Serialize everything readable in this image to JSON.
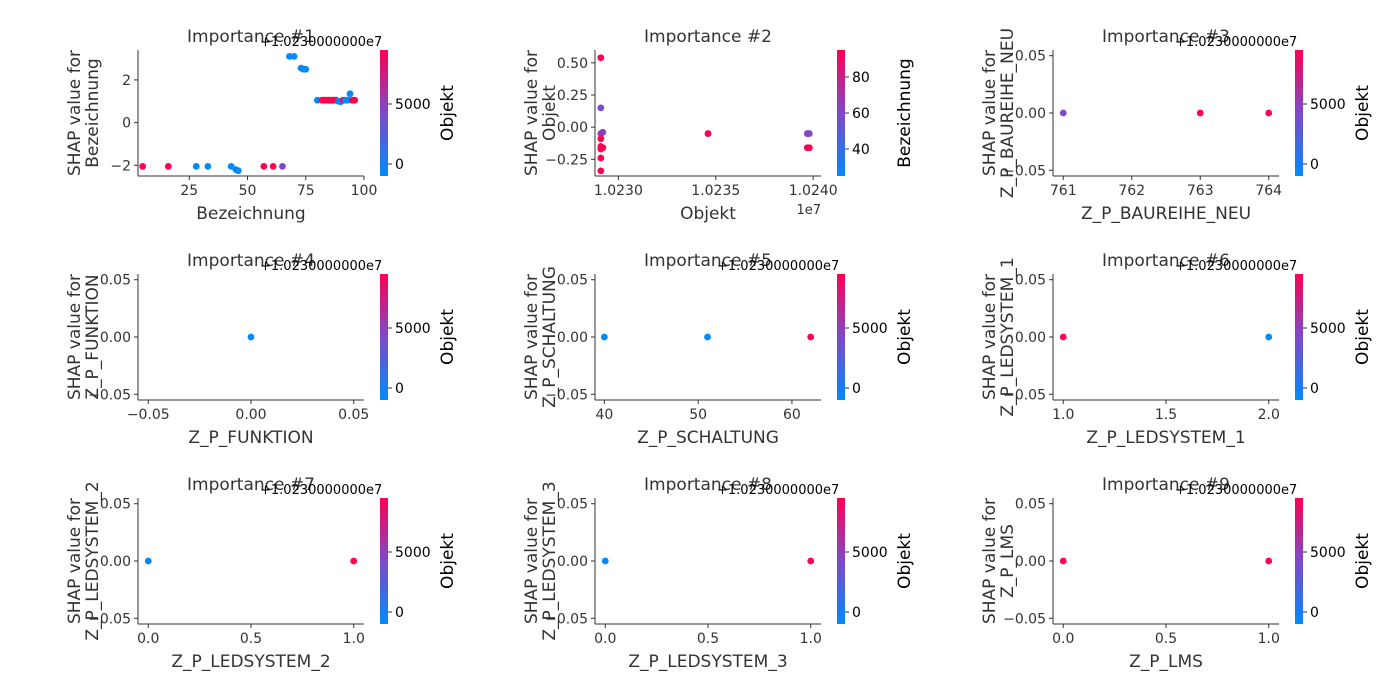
{
  "figure": {
    "colormap": [
      "#008afb",
      "#7e49c8",
      "#ff0052"
    ]
  },
  "chart_data": [
    {
      "type": "scatter",
      "title": "Importance #1",
      "xlabel": "Bezeichnung",
      "ylabel": [
        "SHAP value for",
        "Bezeichnung"
      ],
      "xlim": [
        3,
        100
      ],
      "ylim": [
        -2.5,
        3.4
      ],
      "xticks": [
        25,
        50,
        75,
        100
      ],
      "xtick_labels": [
        "25",
        "50",
        "75",
        "100"
      ],
      "yticks": [
        -2,
        0,
        2
      ],
      "ytick_labels": [
        "−2",
        "0",
        "2"
      ],
      "x_offset": "",
      "y_offset": "+1.0230000000e7",
      "colorbar": {
        "label": "Objekt",
        "min": -1000,
        "max": 9500,
        "ticks": [
          0,
          5000
        ],
        "tick_labels": [
          "0",
          "5000"
        ]
      },
      "points": [
        {
          "x": 5,
          "y": -2.05,
          "c": 1
        },
        {
          "x": 16,
          "y": -2.05,
          "c": 1
        },
        {
          "x": 28,
          "y": -2.05,
          "c": 0
        },
        {
          "x": 33,
          "y": -2.05,
          "c": 0
        },
        {
          "x": 43,
          "y": -2.05,
          "c": 0
        },
        {
          "x": 45,
          "y": -2.2,
          "c": 0
        },
        {
          "x": 46,
          "y": -2.25,
          "c": 0
        },
        {
          "x": 57,
          "y": -2.05,
          "c": 1
        },
        {
          "x": 61,
          "y": -2.05,
          "c": 1
        },
        {
          "x": 65,
          "y": -2.05,
          "c": 0.5
        },
        {
          "x": 68,
          "y": 3.1,
          "c": 0
        },
        {
          "x": 70,
          "y": 3.1,
          "c": 0
        },
        {
          "x": 73,
          "y": 2.55,
          "c": 0
        },
        {
          "x": 74,
          "y": 2.5,
          "c": 0
        },
        {
          "x": 75,
          "y": 2.5,
          "c": 0
        },
        {
          "x": 80,
          "y": 1.05,
          "c": 0
        },
        {
          "x": 82,
          "y": 1.05,
          "c": 1
        },
        {
          "x": 83,
          "y": 1.05,
          "c": 1
        },
        {
          "x": 84,
          "y": 1.05,
          "c": 1
        },
        {
          "x": 85,
          "y": 1.05,
          "c": 1
        },
        {
          "x": 86,
          "y": 1.05,
          "c": 1
        },
        {
          "x": 87,
          "y": 1.05,
          "c": 1
        },
        {
          "x": 88,
          "y": 1.05,
          "c": 1
        },
        {
          "x": 89,
          "y": 1.0,
          "c": 0
        },
        {
          "x": 90,
          "y": 0.98,
          "c": 0
        },
        {
          "x": 91,
          "y": 1.05,
          "c": 1
        },
        {
          "x": 92,
          "y": 1.05,
          "c": 0
        },
        {
          "x": 93,
          "y": 1.05,
          "c": 0
        },
        {
          "x": 94,
          "y": 1.35,
          "c": 0
        },
        {
          "x": 95,
          "y": 1.05,
          "c": 1
        },
        {
          "x": 96,
          "y": 1.05,
          "c": 1
        }
      ]
    },
    {
      "type": "scatter",
      "title": "Importance #2",
      "xlabel": "Objekt",
      "ylabel": [
        "SHAP value for",
        "Objekt"
      ],
      "xlim": [
        1.02288,
        1.02404
      ],
      "ylim": [
        -0.38,
        0.6
      ],
      "xticks": [
        1.023,
        1.0235,
        1.024
      ],
      "xtick_labels": [
        "1.0230",
        "1.0235",
        "1.0240"
      ],
      "yticks": [
        -0.25,
        0,
        0.25,
        0.5
      ],
      "ytick_labels": [
        "−0.25",
        "0.00",
        "0.25",
        "0.50"
      ],
      "x_offset": "1e7",
      "y_offset": "",
      "colorbar": {
        "label": "Bezeichnung",
        "min": 25,
        "max": 95,
        "ticks": [
          40,
          60,
          80
        ],
        "tick_labels": [
          "40",
          "60",
          "80"
        ]
      },
      "points": [
        {
          "x": 1.02291,
          "y": 0.54,
          "c": 1
        },
        {
          "x": 1.02291,
          "y": 0.15,
          "c": 0.5
        },
        {
          "x": 1.02292,
          "y": -0.04,
          "c": 0.5
        },
        {
          "x": 1.02291,
          "y": -0.05,
          "c": 0.6
        },
        {
          "x": 1.02291,
          "y": -0.09,
          "c": 1
        },
        {
          "x": 1.02291,
          "y": -0.15,
          "c": 1
        },
        {
          "x": 1.02292,
          "y": -0.16,
          "c": 1
        },
        {
          "x": 1.02291,
          "y": -0.17,
          "c": 1
        },
        {
          "x": 1.02291,
          "y": -0.24,
          "c": 1
        },
        {
          "x": 1.02291,
          "y": -0.34,
          "c": 1
        },
        {
          "x": 1.02346,
          "y": -0.05,
          "c": 1
        },
        {
          "x": 1.02397,
          "y": -0.05,
          "c": 0.6
        },
        {
          "x": 1.02398,
          "y": -0.05,
          "c": 0.5
        },
        {
          "x": 1.02397,
          "y": -0.16,
          "c": 1
        },
        {
          "x": 1.02398,
          "y": -0.16,
          "c": 1
        }
      ]
    },
    {
      "type": "scatter",
      "title": "Importance #3",
      "xlabel": "Z_P_BAUREIHE_NEU",
      "ylabel": [
        "SHAP value for",
        "Z_P_BAUREIHE_NEU"
      ],
      "xlim": [
        760.85,
        764.15
      ],
      "ylim": [
        -0.055,
        0.055
      ],
      "xticks": [
        761,
        762,
        763,
        764
      ],
      "xtick_labels": [
        "761",
        "762",
        "763",
        "764"
      ],
      "yticks": [
        -0.05,
        0,
        0.05
      ],
      "ytick_labels": [
        "−0.05",
        "0.00",
        "0.05"
      ],
      "x_offset": "",
      "y_offset": "+1.0230000000e7",
      "colorbar": {
        "label": "Objekt",
        "min": -1000,
        "max": 9500,
        "ticks": [
          0,
          5000
        ],
        "tick_labels": [
          "0",
          "5000"
        ]
      },
      "points": [
        {
          "x": 761,
          "y": 0,
          "c": 0.5
        },
        {
          "x": 763,
          "y": 0,
          "c": 1
        },
        {
          "x": 764,
          "y": 0,
          "c": 1
        }
      ]
    },
    {
      "type": "scatter",
      "title": "Importance #4",
      "xlabel": "Z_P_FUNKTION",
      "ylabel": [
        "SHAP value for",
        "Z_P_FUNKTION"
      ],
      "xlim": [
        -0.055,
        0.055
      ],
      "ylim": [
        -0.055,
        0.055
      ],
      "xticks": [
        -0.05,
        0,
        0.05
      ],
      "xtick_labels": [
        "−0.05",
        "0.00",
        "0.05"
      ],
      "yticks": [
        -0.05,
        0,
        0.05
      ],
      "ytick_labels": [
        "−0.05",
        "0.00",
        "0.05"
      ],
      "x_offset": "",
      "y_offset": "+1.0230000000e7",
      "colorbar": {
        "label": "Objekt",
        "min": -1000,
        "max": 9500,
        "ticks": [
          0,
          5000
        ],
        "tick_labels": [
          "0",
          "5000"
        ]
      },
      "points": [
        {
          "x": 0,
          "y": 0,
          "c": 0
        }
      ]
    },
    {
      "type": "scatter",
      "title": "Importance #5",
      "xlabel": "Z_P_SCHALTUNG",
      "ylabel": [
        "SHAP value for",
        "Z_P_SCHALTUNG"
      ],
      "xlim": [
        39,
        63.1
      ],
      "ylim": [
        -0.055,
        0.055
      ],
      "xticks": [
        40,
        50,
        60
      ],
      "xtick_labels": [
        "40",
        "50",
        "60"
      ],
      "yticks": [
        -0.05,
        0,
        0.05
      ],
      "ytick_labels": [
        "−0.05",
        "0.00",
        "0.05"
      ],
      "x_offset": "",
      "y_offset": "+1.0230000000e7",
      "colorbar": {
        "label": "Objekt",
        "min": -1000,
        "max": 9500,
        "ticks": [
          0,
          5000
        ],
        "tick_labels": [
          "0",
          "5000"
        ]
      },
      "points": [
        {
          "x": 40,
          "y": 0,
          "c": 0
        },
        {
          "x": 51,
          "y": 0,
          "c": 0
        },
        {
          "x": 62,
          "y": 0,
          "c": 1
        }
      ]
    },
    {
      "type": "scatter",
      "title": "Importance #6",
      "xlabel": "Z_P_LEDSYSTEM_1",
      "ylabel": [
        "SHAP value for",
        "Z_P_LEDSYSTEM_1"
      ],
      "xlim": [
        0.95,
        2.05
      ],
      "ylim": [
        -0.055,
        0.055
      ],
      "xticks": [
        1,
        1.5,
        2
      ],
      "xtick_labels": [
        "1.0",
        "1.5",
        "2.0"
      ],
      "yticks": [
        -0.05,
        0,
        0.05
      ],
      "ytick_labels": [
        "−0.05",
        "0.00",
        "0.05"
      ],
      "x_offset": "",
      "y_offset": "+1.0230000000e7",
      "colorbar": {
        "label": "Objekt",
        "min": -1000,
        "max": 9500,
        "ticks": [
          0,
          5000
        ],
        "tick_labels": [
          "0",
          "5000"
        ]
      },
      "points": [
        {
          "x": 1,
          "y": 0,
          "c": 1
        },
        {
          "x": 2,
          "y": 0,
          "c": 0
        }
      ]
    },
    {
      "type": "scatter",
      "title": "Importance #7",
      "xlabel": "Z_P_LEDSYSTEM_2",
      "ylabel": [
        "SHAP value for",
        "Z_P_LEDSYSTEM_2"
      ],
      "xlim": [
        -0.05,
        1.05
      ],
      "ylim": [
        -0.055,
        0.055
      ],
      "xticks": [
        0,
        0.5,
        1
      ],
      "xtick_labels": [
        "0.0",
        "0.5",
        "1.0"
      ],
      "yticks": [
        -0.05,
        0,
        0.05
      ],
      "ytick_labels": [
        "−0.05",
        "0.00",
        "0.05"
      ],
      "x_offset": "",
      "y_offset": "+1.0230000000e7",
      "colorbar": {
        "label": "Objekt",
        "min": -1000,
        "max": 9500,
        "ticks": [
          0,
          5000
        ],
        "tick_labels": [
          "0",
          "5000"
        ]
      },
      "points": [
        {
          "x": 0,
          "y": 0,
          "c": 0
        },
        {
          "x": 1,
          "y": 0,
          "c": 1
        }
      ]
    },
    {
      "type": "scatter",
      "title": "Importance #8",
      "xlabel": "Z_P_LEDSYSTEM_3",
      "ylabel": [
        "SHAP value for",
        "Z_P_LEDSYSTEM_3"
      ],
      "xlim": [
        -0.05,
        1.05
      ],
      "ylim": [
        -0.055,
        0.055
      ],
      "xticks": [
        0,
        0.5,
        1
      ],
      "xtick_labels": [
        "0.0",
        "0.5",
        "1.0"
      ],
      "yticks": [
        -0.05,
        0,
        0.05
      ],
      "ytick_labels": [
        "−0.05",
        "0.00",
        "0.05"
      ],
      "x_offset": "",
      "y_offset": "+1.0230000000e7",
      "colorbar": {
        "label": "Objekt",
        "min": -1000,
        "max": 9500,
        "ticks": [
          0,
          5000
        ],
        "tick_labels": [
          "0",
          "5000"
        ]
      },
      "points": [
        {
          "x": 0,
          "y": 0,
          "c": 0
        },
        {
          "x": 1,
          "y": 0,
          "c": 1
        }
      ]
    },
    {
      "type": "scatter",
      "title": "Importance #9",
      "xlabel": "Z_P_LMS",
      "ylabel": [
        "SHAP value for",
        "Z_P_LMS"
      ],
      "xlim": [
        -0.05,
        1.05
      ],
      "ylim": [
        -0.055,
        0.055
      ],
      "xticks": [
        0,
        0.5,
        1
      ],
      "xtick_labels": [
        "0.0",
        "0.5",
        "1.0"
      ],
      "yticks": [
        -0.05,
        0,
        0.05
      ],
      "ytick_labels": [
        "−0.05",
        "0.00",
        "0.05"
      ],
      "x_offset": "",
      "y_offset": "+1.0230000000e7",
      "colorbar": {
        "label": "Objekt",
        "min": -1000,
        "max": 9500,
        "ticks": [
          0,
          5000
        ],
        "tick_labels": [
          "0",
          "5000"
        ]
      },
      "points": [
        {
          "x": 0,
          "y": 0,
          "c": 1
        },
        {
          "x": 1,
          "y": 0,
          "c": 1
        }
      ]
    }
  ]
}
